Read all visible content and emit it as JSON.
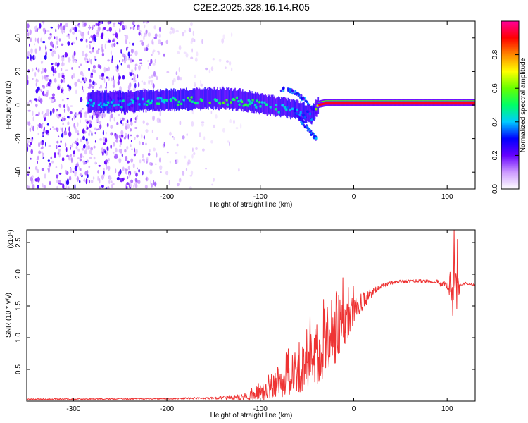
{
  "title": "C2E2.2025.328.16.14.R05",
  "chart_data": [
    {
      "type": "heatmap",
      "name": "spectrogram",
      "xlabel": "Height of straight line (km)",
      "ylabel": "Frequency (Hz)",
      "xlim": [
        -350,
        130
      ],
      "ylim": [
        -50,
        50
      ],
      "xticks": [
        -300,
        -200,
        -100,
        0,
        100
      ],
      "yticks": [
        -40,
        -20,
        0,
        20,
        40
      ],
      "colorbar": {
        "label": "Normalized spectral amplitude",
        "range": [
          0,
          1
        ],
        "ticks": [
          0.0,
          0.2,
          0.4,
          0.6,
          0.8
        ],
        "tick_labels": [
          "0.0",
          "0.2",
          "0.4",
          "0.6",
          "0.8"
        ],
        "colormap": [
          "#ffffff",
          "#cc99ff",
          "#6600ff",
          "#0000ff",
          "#00ccff",
          "#00ff66",
          "#66ff00",
          "#ffff00",
          "#ff8800",
          "#ff0000",
          "#ff0099"
        ]
      },
      "ridge": {
        "x": [
          -280,
          -250,
          -200,
          -150,
          -120,
          -100,
          -80,
          -60,
          -45,
          -38,
          -30,
          -10,
          0,
          30,
          60,
          100,
          130
        ],
        "y": [
          1,
          1,
          2,
          3,
          2,
          0,
          -2,
          -4,
          -7,
          0,
          1,
          1,
          1,
          1,
          1,
          1,
          1
        ],
        "amplitude": [
          0.38,
          0.42,
          0.5,
          0.55,
          0.52,
          0.5,
          0.45,
          0.4,
          0.35,
          0.72,
          0.8,
          0.88,
          0.9,
          0.88,
          0.85,
          0.85,
          0.85
        ]
      },
      "branches": [
        {
          "x": [
            -80,
            -65,
            -50,
            -40
          ],
          "y": [
            10,
            8,
            2,
            -4
          ]
        },
        {
          "x": [
            -65,
            -55,
            -45,
            -40
          ],
          "y": [
            -2,
            -10,
            -17,
            -20
          ]
        }
      ],
      "noise": {
        "x_range": [
          -350,
          -140
        ],
        "y_range": [
          -50,
          50
        ],
        "density_falloff_km": 40
      }
    },
    {
      "type": "line",
      "name": "snr",
      "xlabel": "Height of straight line (km)",
      "ylabel": "SNR (10 * v/v)",
      "y_multiplier": "(x10⁴)",
      "xlim": [
        -350,
        130
      ],
      "ylim": [
        0,
        2.7
      ],
      "xticks": [
        -300,
        -200,
        -100,
        0,
        100
      ],
      "yticks": [
        0.5,
        1.0,
        1.5,
        2.0,
        2.5
      ],
      "ytick_labels": [
        "0.5",
        "1.0",
        "1.5",
        "2.0",
        "2.5"
      ],
      "color": "#ee3333",
      "envelope": {
        "x": [
          -350,
          -200,
          -150,
          -120,
          -100,
          -80,
          -60,
          -40,
          -30,
          -20,
          -10,
          0,
          10,
          20,
          30,
          40,
          60,
          90,
          100,
          105,
          108,
          110,
          115,
          120,
          130
        ],
        "y": [
          0.03,
          0.04,
          0.05,
          0.07,
          0.12,
          0.25,
          0.45,
          0.7,
          0.85,
          1.05,
          1.25,
          1.45,
          1.6,
          1.72,
          1.82,
          1.87,
          1.9,
          1.89,
          1.8,
          1.95,
          2.1,
          1.7,
          1.85,
          1.86,
          1.83
        ],
        "jitter": [
          0.01,
          0.01,
          0.02,
          0.05,
          0.1,
          0.18,
          0.3,
          0.4,
          0.45,
          0.45,
          0.35,
          0.25,
          0.15,
          0.06,
          0.04,
          0.03,
          0.03,
          0.03,
          0.1,
          0.35,
          0.45,
          0.3,
          0.02,
          0.02,
          0.02
        ]
      },
      "peaks": [
        {
          "x": 107.5,
          "y": 2.7
        },
        {
          "x": 111,
          "y": 2.55
        },
        {
          "x": 106,
          "y": 1.35
        }
      ]
    }
  ]
}
